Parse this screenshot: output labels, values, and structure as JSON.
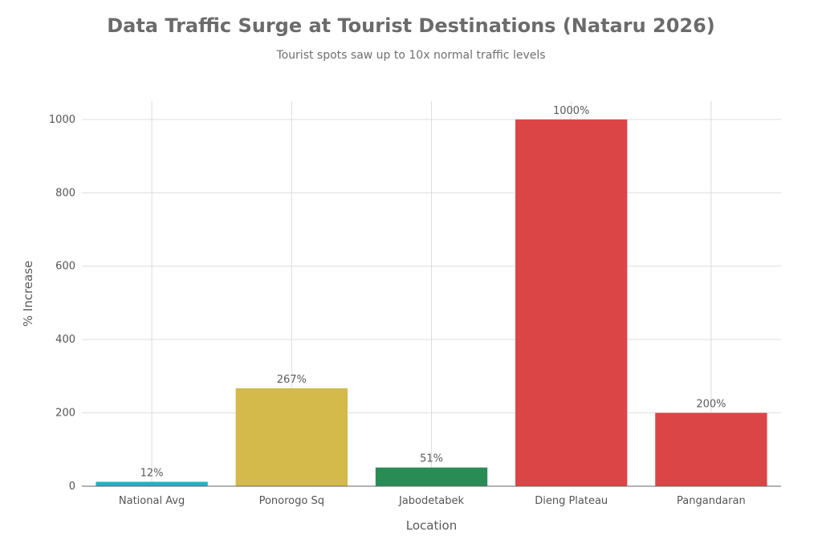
{
  "chart_data": {
    "type": "bar",
    "title": "Data Traffic Surge at Tourist Destinations (Nataru 2026)",
    "subtitle": "Tourist spots saw up to 10x normal traffic levels",
    "xlabel": "Location",
    "ylabel": "% Increase",
    "categories": [
      "National Avg",
      "Ponorogo Sq",
      "Jabodetabek",
      "Dieng Plateau",
      "Pangandaran"
    ],
    "values": [
      12,
      267,
      51,
      1000,
      200
    ],
    "data_labels": [
      "12%",
      "267%",
      "51%",
      "1000%",
      "200%"
    ],
    "colors": [
      "#24b0c4",
      "#d4b94b",
      "#2a8c55",
      "#dc4546",
      "#dc4546"
    ],
    "yticks": [
      0,
      200,
      400,
      600,
      800,
      1000
    ],
    "ylim": [
      0,
      1050
    ],
    "grid": true,
    "legend": "none"
  }
}
